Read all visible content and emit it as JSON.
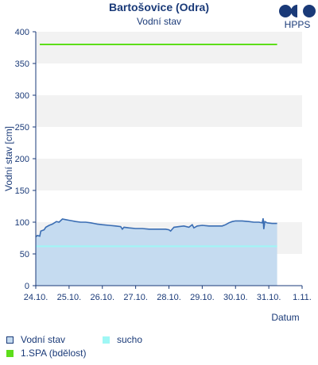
{
  "header": {
    "title": "Bartošovice (Odra)",
    "subtitle": "Vodní stav",
    "logo_text": "HPPS"
  },
  "chart_data": {
    "type": "area",
    "ylabel": "Vodní stav [cm]",
    "xlabel": "Datum",
    "ylim": [
      0,
      400
    ],
    "yticks": [
      0,
      50,
      100,
      150,
      200,
      250,
      300,
      350,
      400
    ],
    "x_start": "24.10.",
    "x_ticks": [
      "24.10.",
      "25.10.",
      "26.10.",
      "27.10.",
      "28.10.",
      "29.10.",
      "30.10.",
      "31.10.",
      "1.11."
    ],
    "grid": "horizontal bands",
    "series": [
      {
        "name": "Vodní stav",
        "kind": "area",
        "color": "#3a6db3",
        "fill": "#c5dbf0",
        "points": [
          [
            0.0,
            77
          ],
          [
            0.05,
            79
          ],
          [
            0.12,
            78
          ],
          [
            0.15,
            86
          ],
          [
            0.25,
            88
          ],
          [
            0.3,
            92
          ],
          [
            0.4,
            95
          ],
          [
            0.5,
            97
          ],
          [
            0.62,
            101
          ],
          [
            0.7,
            100
          ],
          [
            0.8,
            105
          ],
          [
            0.9,
            104
          ],
          [
            1.0,
            103
          ],
          [
            1.1,
            102
          ],
          [
            1.2,
            101
          ],
          [
            1.35,
            100
          ],
          [
            1.5,
            100
          ],
          [
            1.65,
            99
          ],
          [
            1.75,
            98
          ],
          [
            1.85,
            97
          ],
          [
            2.0,
            96
          ],
          [
            2.2,
            95
          ],
          [
            2.4,
            94
          ],
          [
            2.55,
            93
          ],
          [
            2.6,
            89
          ],
          [
            2.65,
            92
          ],
          [
            2.8,
            91
          ],
          [
            3.0,
            90
          ],
          [
            3.2,
            90
          ],
          [
            3.4,
            89
          ],
          [
            3.6,
            89
          ],
          [
            3.8,
            89
          ],
          [
            3.9,
            89
          ],
          [
            4.0,
            88
          ],
          [
            4.05,
            86
          ],
          [
            4.15,
            92
          ],
          [
            4.3,
            93
          ],
          [
            4.45,
            94
          ],
          [
            4.6,
            92
          ],
          [
            4.7,
            96
          ],
          [
            4.75,
            91
          ],
          [
            4.85,
            94
          ],
          [
            5.0,
            95
          ],
          [
            5.2,
            94
          ],
          [
            5.4,
            94
          ],
          [
            5.6,
            94
          ],
          [
            5.7,
            96
          ],
          [
            5.8,
            99
          ],
          [
            5.9,
            101
          ],
          [
            6.0,
            102
          ],
          [
            6.2,
            102
          ],
          [
            6.4,
            101
          ],
          [
            6.55,
            100
          ],
          [
            6.7,
            100
          ],
          [
            6.8,
            99
          ],
          [
            6.83,
            106
          ],
          [
            6.85,
            89
          ],
          [
            6.88,
            101
          ],
          [
            6.95,
            99
          ],
          [
            7.1,
            98
          ],
          [
            7.25,
            98
          ]
        ]
      },
      {
        "name": "sucho",
        "kind": "line",
        "color": "#9ff7f5",
        "value": 62
      },
      {
        "name": "1.SPA (bdělost)",
        "kind": "line",
        "color": "#5dde1a",
        "value": 380
      }
    ]
  },
  "legend": [
    {
      "label": "Vodní stav",
      "swatch_fill": "#c5dbf0",
      "swatch_border": "#1a3a78"
    },
    {
      "label": "sucho",
      "swatch_fill": "#9ff7f5",
      "swatch_border": "#9ff7f5"
    },
    {
      "label": "1.SPA (bdělost)",
      "swatch_fill": "#5dde1a",
      "swatch_border": "#5dde1a"
    }
  ]
}
